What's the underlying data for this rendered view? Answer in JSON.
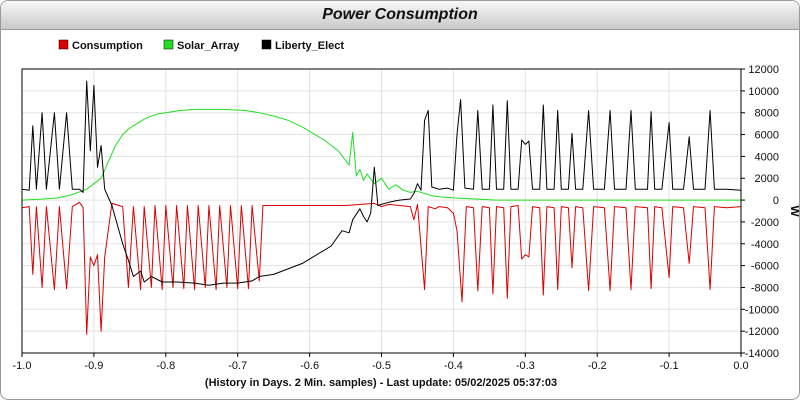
{
  "page": {
    "title": "Power Consumption"
  },
  "chart_data": {
    "type": "line",
    "title": "Power Consumption",
    "xlabel": "(History in Days. 2 Min. samples) - Last update: 05/02/2025 05:37:03",
    "ylabel": "W",
    "xlim": [
      -1.0,
      0.0
    ],
    "ylim": [
      -14000,
      12000
    ],
    "x_ticks": [
      -1.0,
      -0.9,
      -0.8,
      -0.7,
      -0.6,
      -0.5,
      -0.4,
      -0.3,
      -0.2,
      -0.1,
      0.0
    ],
    "x_tick_labels": [
      "-1.0",
      "-0.9",
      "-0.8",
      "-0.7",
      "-0.6",
      "-0.5",
      "-0.4",
      "-0.3",
      "-0.2",
      "-0.1",
      "0.0"
    ],
    "y_ticks": [
      12000,
      10000,
      8000,
      6000,
      4000,
      2000,
      0,
      -2000,
      -4000,
      -6000,
      -8000,
      -10000,
      -12000,
      -14000
    ],
    "y_tick_labels": [
      "12000",
      "10000",
      "8000",
      "6000",
      "4000",
      "2000",
      "0",
      "-2000",
      "-4000",
      "-6000",
      "-8000",
      "-10000",
      "-12000",
      "-14000"
    ],
    "grid": true,
    "legend_position": "top-left",
    "series": [
      {
        "name": "Consumption",
        "color": "#dd0000",
        "points": [
          [
            -1.0,
            -700
          ],
          [
            -0.99,
            -600
          ],
          [
            -0.985,
            -6800
          ],
          [
            -0.98,
            -600
          ],
          [
            -0.972,
            -8000
          ],
          [
            -0.966,
            -600
          ],
          [
            -0.955,
            -8200
          ],
          [
            -0.948,
            -600
          ],
          [
            -0.938,
            -8100
          ],
          [
            -0.93,
            -600
          ],
          [
            -0.92,
            -200
          ],
          [
            -0.915,
            -700
          ],
          [
            -0.91,
            -12300
          ],
          [
            -0.905,
            -5200
          ],
          [
            -0.9,
            -6000
          ],
          [
            -0.895,
            -5000
          ],
          [
            -0.89,
            -12000
          ],
          [
            -0.885,
            -5200
          ],
          [
            -0.875,
            -300
          ],
          [
            -0.86,
            -600
          ],
          [
            -0.852,
            -8000
          ],
          [
            -0.845,
            -600
          ],
          [
            -0.835,
            -8200
          ],
          [
            -0.83,
            -600
          ],
          [
            -0.82,
            -8000
          ],
          [
            -0.815,
            -500
          ],
          [
            -0.805,
            -8200
          ],
          [
            -0.8,
            -500
          ],
          [
            -0.79,
            -8000
          ],
          [
            -0.785,
            -500
          ],
          [
            -0.775,
            -8100
          ],
          [
            -0.77,
            -500
          ],
          [
            -0.76,
            -8200
          ],
          [
            -0.755,
            -500
          ],
          [
            -0.745,
            -8000
          ],
          [
            -0.74,
            -500
          ],
          [
            -0.73,
            -8200
          ],
          [
            -0.725,
            -500
          ],
          [
            -0.715,
            -8000
          ],
          [
            -0.71,
            -500
          ],
          [
            -0.7,
            -8100
          ],
          [
            -0.695,
            -500
          ],
          [
            -0.685,
            -8100
          ],
          [
            -0.68,
            -500
          ],
          [
            -0.67,
            -7400
          ],
          [
            -0.665,
            -500
          ],
          [
            -0.6,
            -500
          ],
          [
            -0.55,
            -500
          ],
          [
            -0.51,
            -300
          ],
          [
            -0.5,
            -600
          ],
          [
            -0.49,
            -400
          ],
          [
            -0.46,
            -600
          ],
          [
            -0.455,
            -1800
          ],
          [
            -0.45,
            -400
          ],
          [
            -0.44,
            -8200
          ],
          [
            -0.435,
            -600
          ],
          [
            -0.425,
            -800
          ],
          [
            -0.42,
            -600
          ],
          [
            -0.408,
            -700
          ],
          [
            -0.4,
            -1200
          ],
          [
            -0.395,
            -2800
          ],
          [
            -0.388,
            -9300
          ],
          [
            -0.382,
            -600
          ],
          [
            -0.372,
            -700
          ],
          [
            -0.366,
            -8300
          ],
          [
            -0.36,
            -600
          ],
          [
            -0.35,
            -700
          ],
          [
            -0.345,
            -8600
          ],
          [
            -0.34,
            -600
          ],
          [
            -0.33,
            -700
          ],
          [
            -0.325,
            -9000
          ],
          [
            -0.32,
            -600
          ],
          [
            -0.31,
            -500
          ],
          [
            -0.305,
            -5400
          ],
          [
            -0.3,
            -5000
          ],
          [
            -0.295,
            -5200
          ],
          [
            -0.29,
            -600
          ],
          [
            -0.28,
            -700
          ],
          [
            -0.275,
            -8700
          ],
          [
            -0.27,
            -600
          ],
          [
            -0.26,
            -700
          ],
          [
            -0.255,
            -8200
          ],
          [
            -0.25,
            -600
          ],
          [
            -0.24,
            -700
          ],
          [
            -0.235,
            -6200
          ],
          [
            -0.23,
            -600
          ],
          [
            -0.22,
            -700
          ],
          [
            -0.212,
            -8300
          ],
          [
            -0.205,
            -600
          ],
          [
            -0.19,
            -700
          ],
          [
            -0.182,
            -8300
          ],
          [
            -0.176,
            -600
          ],
          [
            -0.16,
            -700
          ],
          [
            -0.153,
            -8200
          ],
          [
            -0.147,
            -600
          ],
          [
            -0.13,
            -700
          ],
          [
            -0.125,
            -8100
          ],
          [
            -0.12,
            -600
          ],
          [
            -0.11,
            -700
          ],
          [
            -0.1,
            -7100
          ],
          [
            -0.095,
            -600
          ],
          [
            -0.08,
            -700
          ],
          [
            -0.072,
            -5800
          ],
          [
            -0.066,
            -600
          ],
          [
            -0.05,
            -700
          ],
          [
            -0.043,
            -8200
          ],
          [
            -0.037,
            -600
          ],
          [
            -0.02,
            -700
          ],
          [
            0.0,
            -600
          ]
        ]
      },
      {
        "name": "Solar_Array",
        "color": "#22dd22",
        "points": [
          [
            -1.0,
            0
          ],
          [
            -0.97,
            100
          ],
          [
            -0.95,
            200
          ],
          [
            -0.93,
            500
          ],
          [
            -0.91,
            1000
          ],
          [
            -0.89,
            2000
          ],
          [
            -0.88,
            3500
          ],
          [
            -0.87,
            5000
          ],
          [
            -0.86,
            6000
          ],
          [
            -0.85,
            6600
          ],
          [
            -0.84,
            7000
          ],
          [
            -0.83,
            7400
          ],
          [
            -0.82,
            7700
          ],
          [
            -0.81,
            7900
          ],
          [
            -0.8,
            8000
          ],
          [
            -0.79,
            8100
          ],
          [
            -0.78,
            8200
          ],
          [
            -0.76,
            8300
          ],
          [
            -0.72,
            8300
          ],
          [
            -0.69,
            8200
          ],
          [
            -0.67,
            8000
          ],
          [
            -0.65,
            7700
          ],
          [
            -0.63,
            7300
          ],
          [
            -0.61,
            6700
          ],
          [
            -0.6,
            6300
          ],
          [
            -0.58,
            5500
          ],
          [
            -0.56,
            4500
          ],
          [
            -0.545,
            3200
          ],
          [
            -0.54,
            6200
          ],
          [
            -0.535,
            2200
          ],
          [
            -0.53,
            2800
          ],
          [
            -0.525,
            1800
          ],
          [
            -0.52,
            2400
          ],
          [
            -0.51,
            1500
          ],
          [
            -0.5,
            2000
          ],
          [
            -0.49,
            1000
          ],
          [
            -0.48,
            1400
          ],
          [
            -0.47,
            900
          ],
          [
            -0.46,
            700
          ],
          [
            -0.45,
            800
          ],
          [
            -0.44,
            600
          ],
          [
            -0.43,
            400
          ],
          [
            -0.42,
            300
          ],
          [
            -0.4,
            200
          ],
          [
            -0.37,
            100
          ],
          [
            -0.34,
            0
          ],
          [
            0.0,
            0
          ]
        ]
      },
      {
        "name": "Liberty_Elect",
        "color": "#000000",
        "points": [
          [
            -1.0,
            1000
          ],
          [
            -0.99,
            900
          ],
          [
            -0.985,
            6800
          ],
          [
            -0.98,
            1000
          ],
          [
            -0.972,
            8000
          ],
          [
            -0.966,
            1000
          ],
          [
            -0.955,
            8000
          ],
          [
            -0.948,
            1000
          ],
          [
            -0.938,
            8000
          ],
          [
            -0.93,
            1000
          ],
          [
            -0.92,
            1000
          ],
          [
            -0.915,
            700
          ],
          [
            -0.91,
            10900
          ],
          [
            -0.905,
            4500
          ],
          [
            -0.9,
            10500
          ],
          [
            -0.895,
            3000
          ],
          [
            -0.89,
            5000
          ],
          [
            -0.885,
            1000
          ],
          [
            -0.875,
            -500
          ],
          [
            -0.86,
            -4000
          ],
          [
            -0.852,
            -5500
          ],
          [
            -0.845,
            -7000
          ],
          [
            -0.835,
            -6500
          ],
          [
            -0.83,
            -7500
          ],
          [
            -0.82,
            -7000
          ],
          [
            -0.805,
            -7500
          ],
          [
            -0.785,
            -7500
          ],
          [
            -0.76,
            -7600
          ],
          [
            -0.74,
            -7800
          ],
          [
            -0.72,
            -7600
          ],
          [
            -0.7,
            -7600
          ],
          [
            -0.68,
            -7400
          ],
          [
            -0.67,
            -7000
          ],
          [
            -0.65,
            -6800
          ],
          [
            -0.63,
            -6300
          ],
          [
            -0.61,
            -5800
          ],
          [
            -0.59,
            -5000
          ],
          [
            -0.57,
            -4200
          ],
          [
            -0.555,
            -2800
          ],
          [
            -0.545,
            -3000
          ],
          [
            -0.54,
            -1800
          ],
          [
            -0.53,
            -800
          ],
          [
            -0.525,
            -1500
          ],
          [
            -0.52,
            -2000
          ],
          [
            -0.515,
            -1200
          ],
          [
            -0.51,
            3000
          ],
          [
            -0.505,
            -500
          ],
          [
            -0.5,
            -400
          ],
          [
            -0.49,
            -200
          ],
          [
            -0.475,
            0
          ],
          [
            -0.46,
            100
          ],
          [
            -0.455,
            600
          ],
          [
            -0.45,
            1500
          ],
          [
            -0.445,
            900
          ],
          [
            -0.44,
            7300
          ],
          [
            -0.435,
            8200
          ],
          [
            -0.43,
            1200
          ],
          [
            -0.42,
            1000
          ],
          [
            -0.408,
            1100
          ],
          [
            -0.4,
            900
          ],
          [
            -0.395,
            6000
          ],
          [
            -0.39,
            9200
          ],
          [
            -0.384,
            1100
          ],
          [
            -0.372,
            1000
          ],
          [
            -0.366,
            8200
          ],
          [
            -0.36,
            1000
          ],
          [
            -0.35,
            1000
          ],
          [
            -0.345,
            8700
          ],
          [
            -0.34,
            1000
          ],
          [
            -0.33,
            1000
          ],
          [
            -0.325,
            9100
          ],
          [
            -0.32,
            1000
          ],
          [
            -0.31,
            1000
          ],
          [
            -0.305,
            5500
          ],
          [
            -0.3,
            5100
          ],
          [
            -0.295,
            5400
          ],
          [
            -0.29,
            1000
          ],
          [
            -0.28,
            1000
          ],
          [
            -0.275,
            8700
          ],
          [
            -0.27,
            1000
          ],
          [
            -0.26,
            1000
          ],
          [
            -0.255,
            8200
          ],
          [
            -0.25,
            1000
          ],
          [
            -0.24,
            1000
          ],
          [
            -0.235,
            6100
          ],
          [
            -0.23,
            1000
          ],
          [
            -0.22,
            1000
          ],
          [
            -0.212,
            8200
          ],
          [
            -0.205,
            1000
          ],
          [
            -0.19,
            1000
          ],
          [
            -0.182,
            8200
          ],
          [
            -0.176,
            1000
          ],
          [
            -0.16,
            1000
          ],
          [
            -0.153,
            8200
          ],
          [
            -0.147,
            1000
          ],
          [
            -0.13,
            1000
          ],
          [
            -0.125,
            8100
          ],
          [
            -0.12,
            1000
          ],
          [
            -0.11,
            1000
          ],
          [
            -0.1,
            7100
          ],
          [
            -0.095,
            1000
          ],
          [
            -0.08,
            1000
          ],
          [
            -0.072,
            5800
          ],
          [
            -0.066,
            1000
          ],
          [
            -0.05,
            1000
          ],
          [
            -0.043,
            8200
          ],
          [
            -0.037,
            1000
          ],
          [
            -0.02,
            1000
          ],
          [
            0.0,
            900
          ]
        ]
      }
    ]
  }
}
